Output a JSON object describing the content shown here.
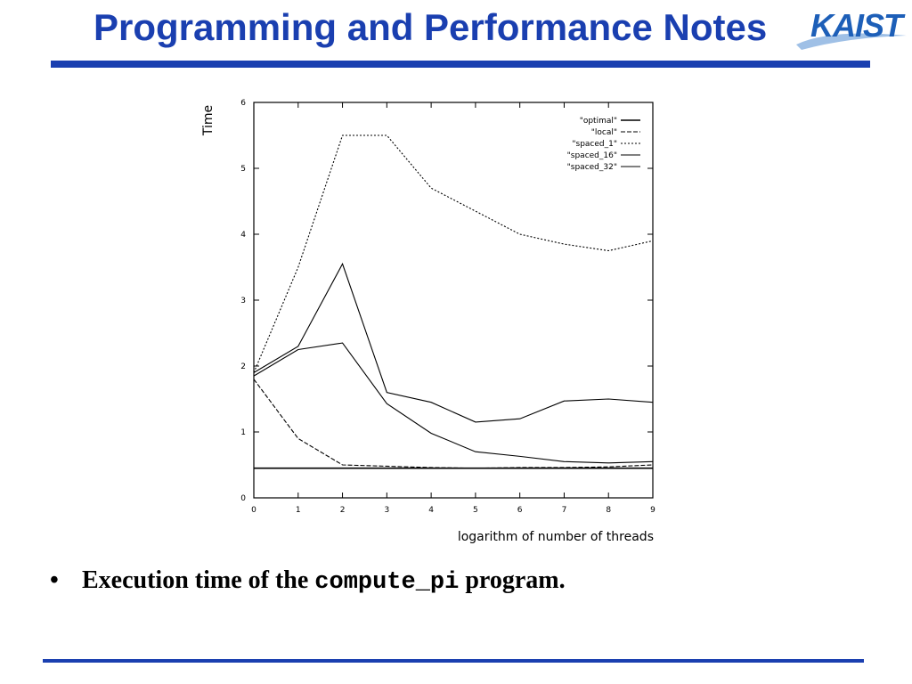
{
  "slide": {
    "title": "Programming and Performance Notes",
    "logo_text": "KAIST",
    "bullet_symbol": "•",
    "caption_prefix": "Execution time of the",
    "caption_code": "compute_pi",
    "caption_suffix": "program."
  },
  "colors": {
    "title": "#1a3fb0",
    "rule": "#1a3fb0",
    "logo": "#1d5fb8",
    "ink": "#000000"
  },
  "chart_data": {
    "type": "line",
    "title": "",
    "xlabel": "logarithm of number of threads",
    "ylabel": "Time",
    "xlim": [
      0,
      9
    ],
    "ylim": [
      0,
      6
    ],
    "x_ticks": [
      0,
      1,
      2,
      3,
      4,
      5,
      6,
      7,
      8,
      9
    ],
    "y_ticks": [
      0,
      1,
      2,
      3,
      4,
      5,
      6
    ],
    "grid": false,
    "legend_position": "top-right",
    "x": [
      0,
      1,
      2,
      3,
      4,
      5,
      6,
      7,
      8,
      9
    ],
    "series": [
      {
        "name": "\"optimal\"",
        "dash": "solid",
        "values": [
          0.45,
          0.45,
          0.45,
          0.45,
          0.45,
          0.45,
          0.45,
          0.45,
          0.45,
          0.45
        ]
      },
      {
        "name": "\"local\"",
        "dash": "dashed",
        "values": [
          1.8,
          0.9,
          0.5,
          0.48,
          0.46,
          0.45,
          0.46,
          0.46,
          0.47,
          0.5
        ]
      },
      {
        "name": "\"spaced_1\"",
        "dash": "dotted",
        "values": [
          1.9,
          3.5,
          5.5,
          5.5,
          4.7,
          4.35,
          4.0,
          3.85,
          3.75,
          3.9
        ]
      },
      {
        "name": "\"spaced_16\"",
        "dash": "solid",
        "values": [
          1.9,
          2.3,
          3.55,
          1.6,
          1.45,
          1.15,
          1.2,
          1.47,
          1.5,
          1.45
        ]
      },
      {
        "name": "\"spaced_32\"",
        "dash": "solid",
        "values": [
          1.85,
          2.25,
          2.35,
          1.43,
          0.98,
          0.7,
          0.63,
          0.55,
          0.53,
          0.55
        ]
      }
    ]
  }
}
